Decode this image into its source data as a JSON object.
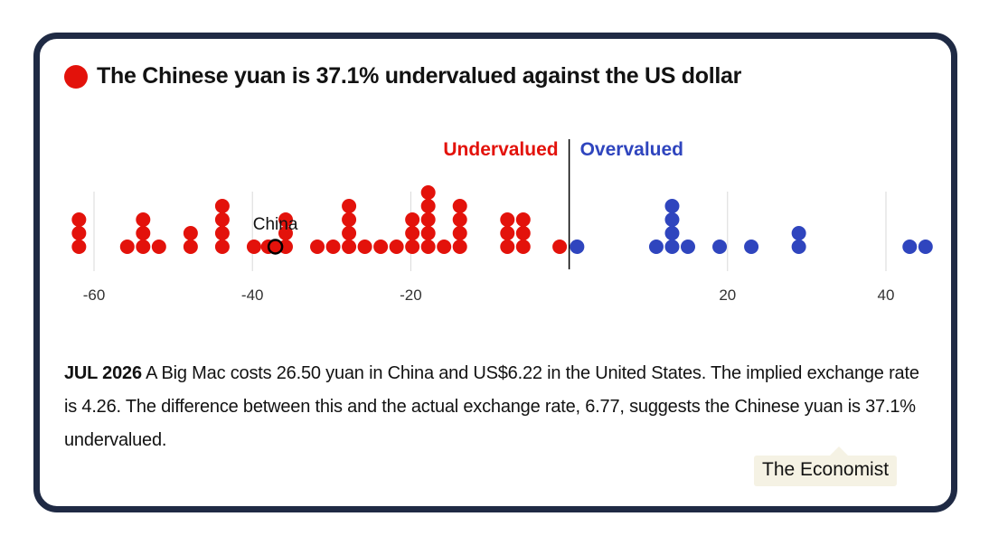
{
  "title": "The Chinese yuan is 37.1% undervalued against the US dollar",
  "description": {
    "date": "JUL 2026",
    "text": " A Big Mac costs 26.50 yuan in China and US$6.22 in the United States. The implied exchange rate is 4.26. The difference between this and the actual exchange rate, 6.77, suggests the Chinese yuan is 37.1% undervalued."
  },
  "source_label": "The Economist",
  "colors": {
    "undervalued": "#e3120b",
    "overvalued": "#2f45be",
    "highlight_stroke": "#000000",
    "grid": "#d9d9d9"
  },
  "chart_data": {
    "type": "scatter",
    "title": "",
    "xlabel": "",
    "ylabel": "",
    "xlim": [
      -62,
      45
    ],
    "xticks": [
      -60,
      -40,
      -20,
      20,
      40
    ],
    "grid": true,
    "annotations": {
      "undervalued": "Undervalued",
      "overvalued": "Overvalued",
      "highlight": "China"
    },
    "highlight": {
      "name": "China",
      "x": -37.1
    },
    "points": [
      -61.9,
      -61.9,
      -61.9,
      -55.8,
      -53.8,
      -53.8,
      -53.8,
      -51.8,
      -47.8,
      -47.8,
      -43.8,
      -43.8,
      -43.8,
      -43.8,
      -39.8,
      -38.0,
      -37.1,
      -35.8,
      -35.8,
      -35.8,
      -31.8,
      -29.8,
      -27.8,
      -27.8,
      -27.8,
      -27.8,
      -25.8,
      -23.8,
      -21.8,
      -19.8,
      -19.8,
      -19.8,
      -17.8,
      -17.8,
      -17.8,
      -17.8,
      -17.8,
      -15.8,
      -13.8,
      -13.8,
      -13.8,
      -13.8,
      -7.8,
      -7.8,
      -7.8,
      -5.8,
      -5.8,
      -5.8,
      -1.2,
      1.0,
      11.0,
      13.0,
      13.0,
      13.0,
      13.0,
      15.0,
      19.0,
      23.0,
      29.0,
      29.0,
      43.0,
      45.0
    ]
  }
}
